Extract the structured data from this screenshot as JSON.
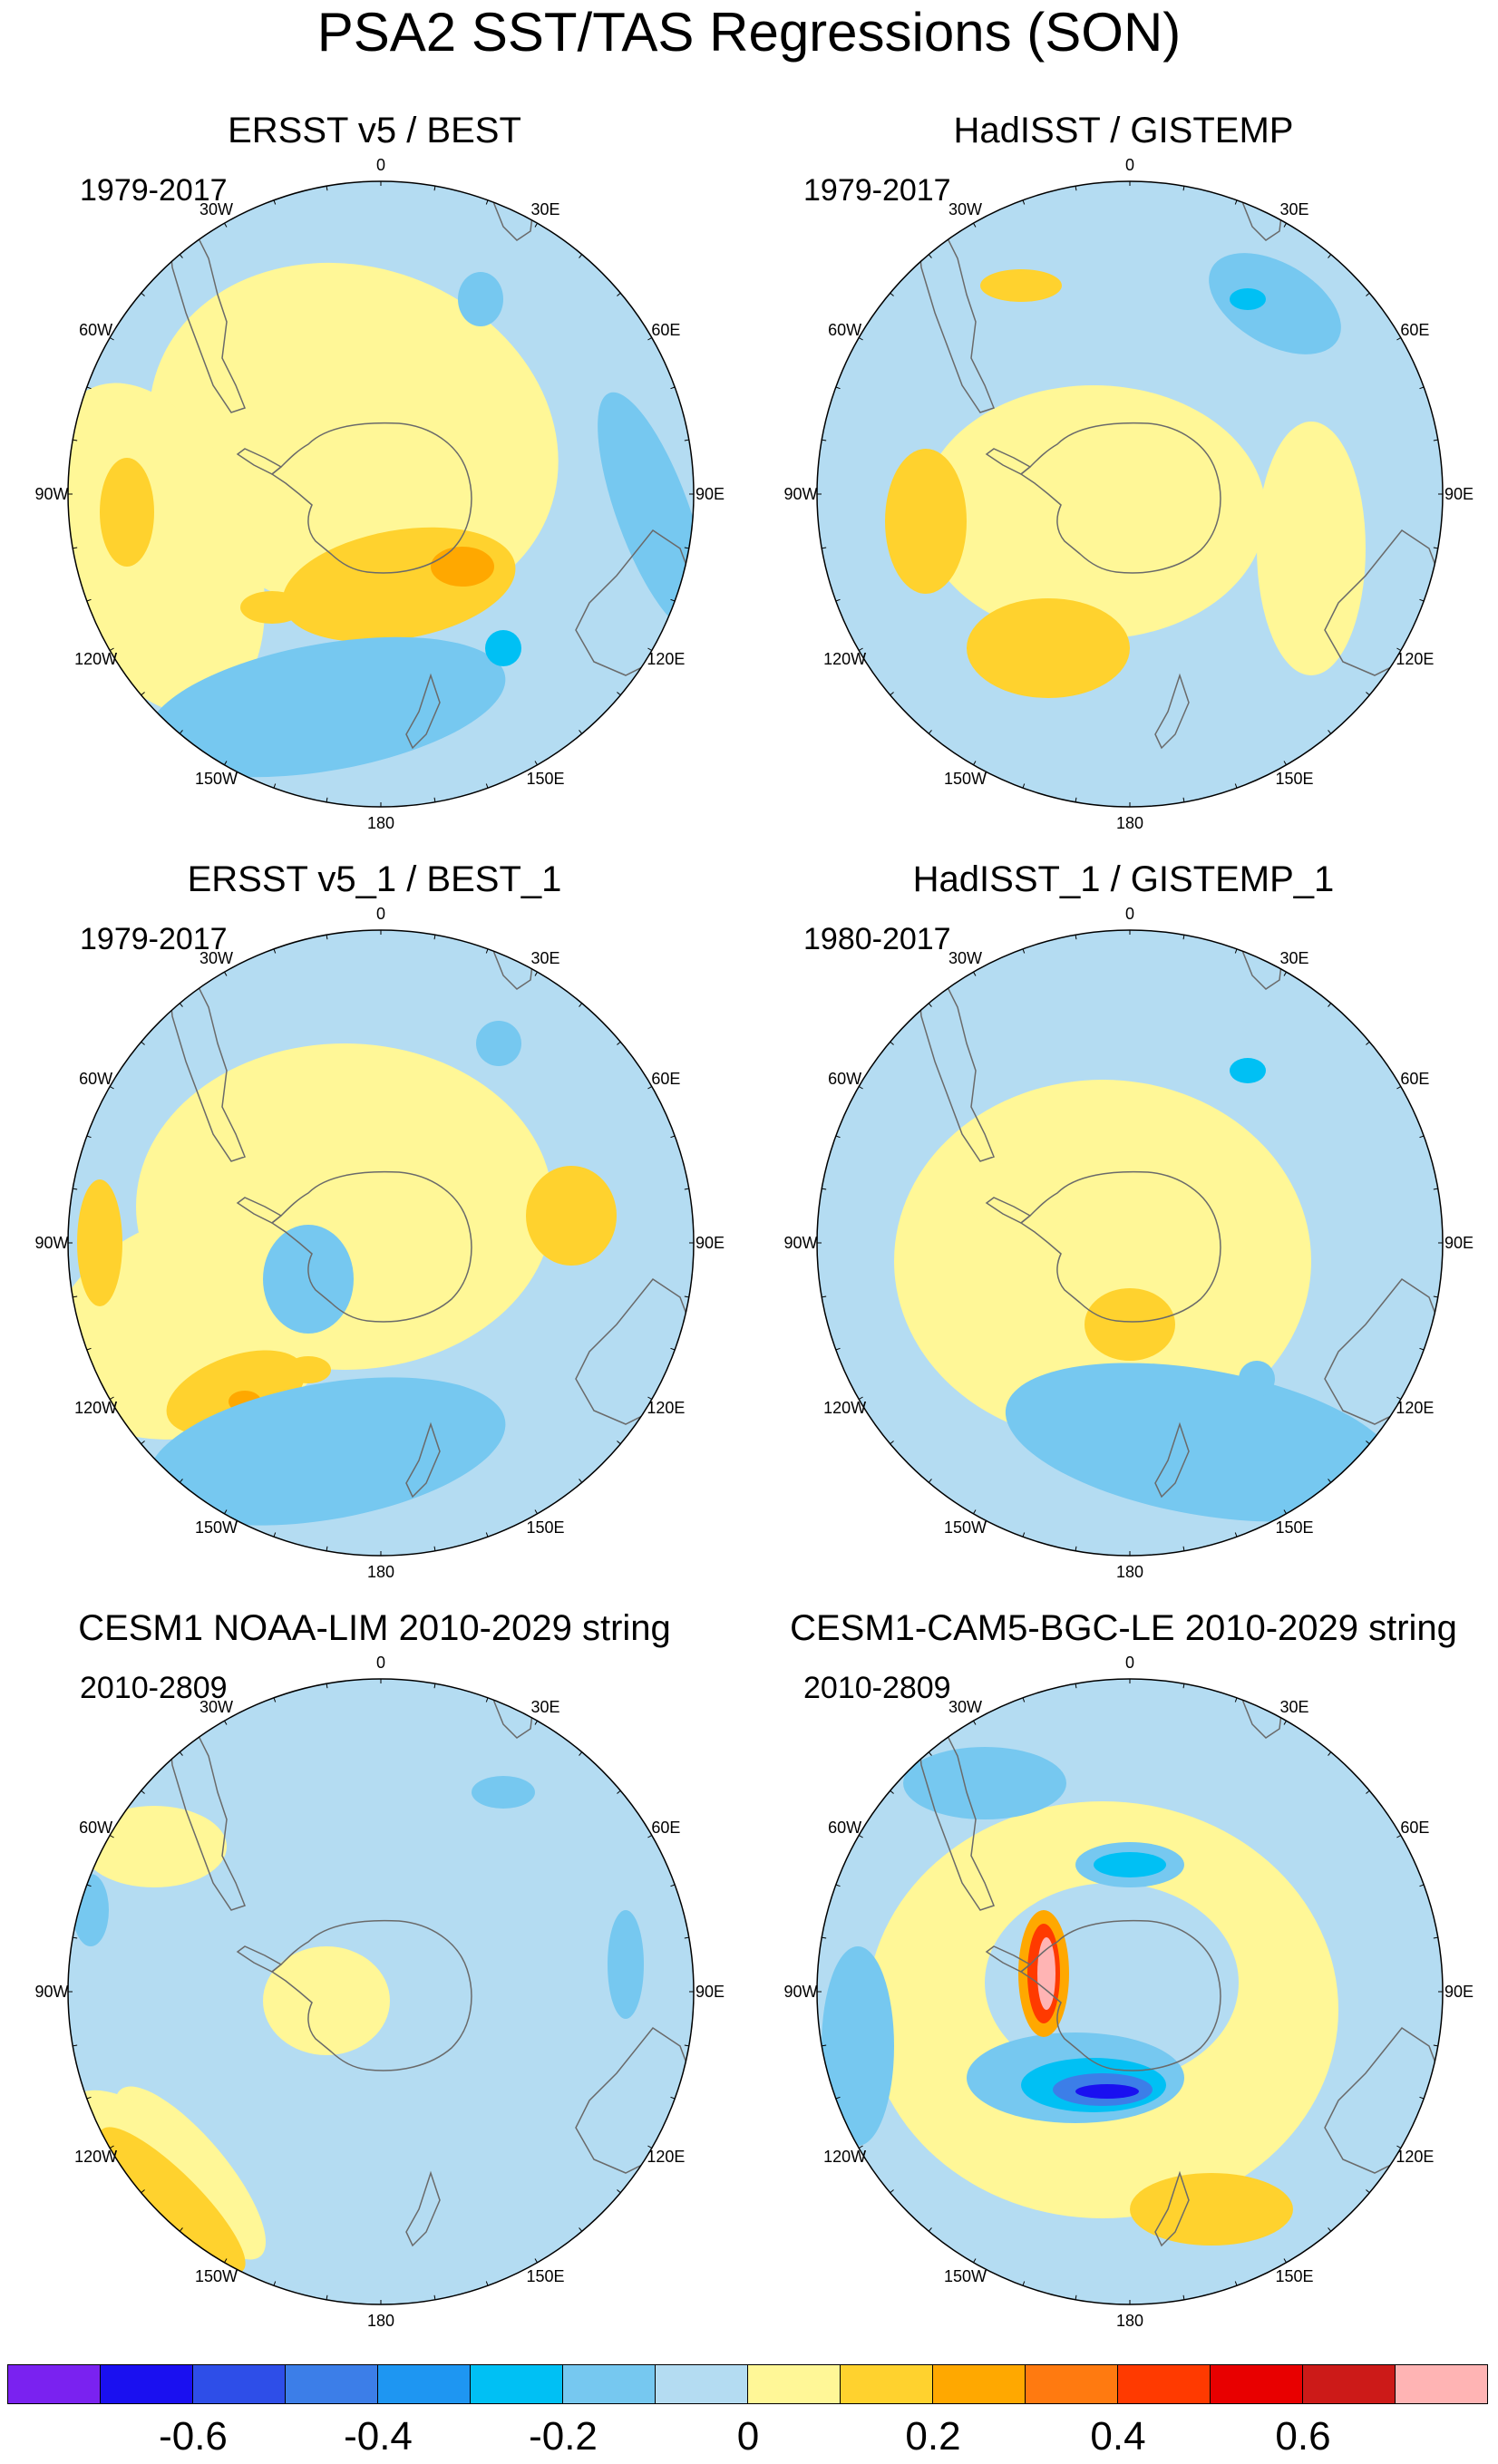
{
  "title": "PSA2 SST/TAS Regressions (SON)",
  "palette": {
    "n06": "#7a22f0",
    "n05": "#1a10f0",
    "n04": "#2e4ee8",
    "n03": "#3c7ee8",
    "n02": "#1e96f2",
    "n01": "#00c0f4",
    "n005": "#76c8f0",
    "zero_neg": "#b4dcf2",
    "zero_pos": "#fff797",
    "p01": "#ffd22e",
    "p02": "#ffa800",
    "p03": "#ff7a10",
    "p04": "#ff3a00",
    "p05": "#e80000",
    "p06": "#cc1a18",
    "p07": "#ffb4b4",
    "land": "#ffffff",
    "coast": "#6a6a6a",
    "border": "#000000"
  },
  "colorbar": {
    "colors": [
      "#7a22f0",
      "#1a10f0",
      "#2e4ee8",
      "#3c7ee8",
      "#1e96f2",
      "#00c0f4",
      "#76c8f0",
      "#b4dcf2",
      "#fff797",
      "#ffd22e",
      "#ffa800",
      "#ff7a10",
      "#ff3a00",
      "#e80000",
      "#cc1a18",
      "#ffb4b4"
    ],
    "labels": [
      "-0.6",
      "-0.4",
      "-0.2",
      "0",
      "0.2",
      "0.4",
      "0.6"
    ]
  },
  "longitude_labels": {
    "lon0": "0",
    "lon30e": "30E",
    "lon60e": "60E",
    "lon90e": "90E",
    "lon120e": "120E",
    "lon150e": "150E",
    "lon180": "180",
    "lon150w": "150W",
    "lon120w": "120W",
    "lon90w": "90W",
    "lon60w": "60W",
    "lon30w": "30W"
  },
  "panels": [
    {
      "title": "ERSST v5 / BEST",
      "period": "1979-2017"
    },
    {
      "title": "HadISST / GISTEMP",
      "period": "1979-2017"
    },
    {
      "title": "ERSST v5_1 / BEST_1",
      "period": "1979-2017"
    },
    {
      "title": "HadISST_1 / GISTEMP_1",
      "period": "1980-2017"
    },
    {
      "title": "CESM1 NOAA-LIM 2010-2029 string",
      "period": "2010-2809"
    },
    {
      "title": "CESM1-CAM5-BGC-LE 2010-2029 string",
      "period": "2010-2809"
    }
  ]
}
